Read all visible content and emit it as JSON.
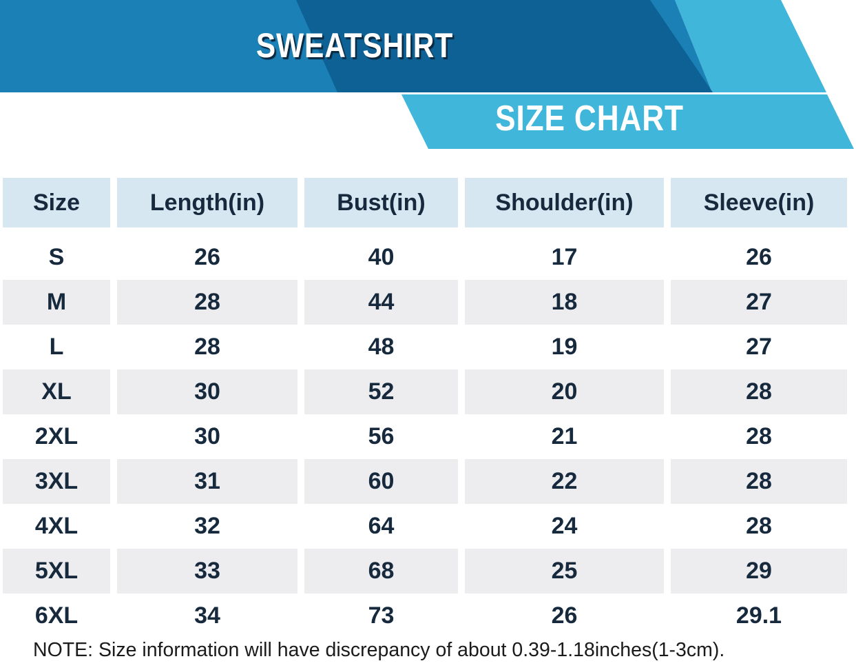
{
  "banner": {
    "title": "SWEATSHIRT",
    "subtitle": "SIZE CHART"
  },
  "table": {
    "columns": [
      "Size",
      "Length(in)",
      "Bust(in)",
      "Shoulder(in)",
      "Sleeve(in)"
    ],
    "rows": [
      [
        "S",
        "26",
        "40",
        "17",
        "26"
      ],
      [
        "M",
        "28",
        "44",
        "18",
        "27"
      ],
      [
        "L",
        "28",
        "48",
        "19",
        "27"
      ],
      [
        "XL",
        "30",
        "52",
        "20",
        "28"
      ],
      [
        "2XL",
        "30",
        "56",
        "21",
        "28"
      ],
      [
        "3XL",
        "31",
        "60",
        "22",
        "28"
      ],
      [
        "4XL",
        "32",
        "64",
        "24",
        "28"
      ],
      [
        "5XL",
        "33",
        "68",
        "25",
        "29"
      ],
      [
        "6XL",
        "34",
        "73",
        "26",
        "29.1"
      ]
    ]
  },
  "note": "NOTE: Size information will have discrepancy of about 0.39-1.18inches(1-3cm).",
  "colors": {
    "medium_blue": "#1a80b5",
    "dark_blue": "#0d6195",
    "cyan": "#3fb6da",
    "header_bg": "#d7e7f1",
    "row_alt_bg": "#edecef",
    "navy_text": "#16293d",
    "note_text": "#1b1b1b",
    "title_shadow": "#0a2940"
  }
}
